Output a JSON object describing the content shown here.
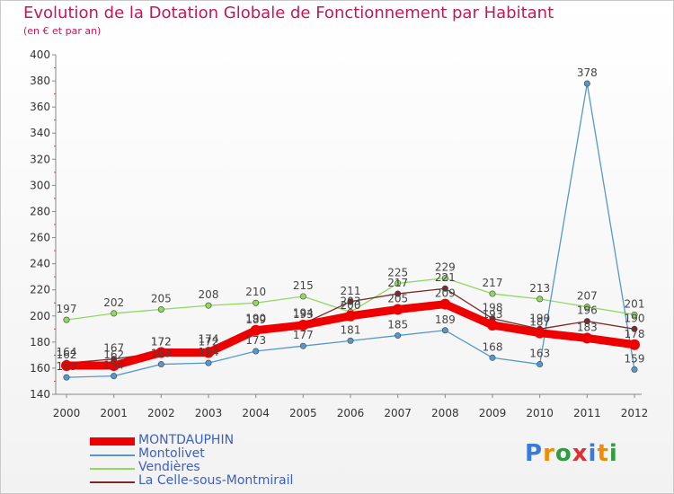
{
  "title": "Evolution de la Dotation Globale de Fonctionnement par Habitant",
  "subtitle": "(en € et par an)",
  "logo": "Proxiti",
  "chart_data": {
    "type": "line",
    "title": "Evolution de la Dotation Globale de Fonctionnement par Habitant",
    "subtitle": "(en € et par an)",
    "xlabel": "",
    "ylabel": "",
    "x": [
      "2000",
      "2001",
      "2002",
      "2003",
      "2004",
      "2005",
      "2006",
      "2007",
      "2008",
      "2009",
      "2010",
      "2011",
      "2012"
    ],
    "ylim": [
      140,
      400
    ],
    "yticks": [
      140,
      160,
      180,
      200,
      220,
      240,
      260,
      280,
      300,
      320,
      340,
      360,
      380,
      400
    ],
    "grid": false,
    "legend": "bottom-left",
    "series": [
      {
        "name": "Vendières",
        "color": "#90d860",
        "values": [
          197,
          202,
          205,
          208,
          210,
          215,
          203,
          225,
          229,
          217,
          213,
          207,
          201
        ],
        "labels": [
          "197",
          "202",
          "205",
          "208",
          "210",
          "215",
          "203",
          "225",
          "229",
          "217",
          "213",
          "207",
          "201"
        ]
      },
      {
        "name": "Montolivet",
        "color": "#5599cc",
        "values": [
          153,
          154,
          163,
          164,
          173,
          177,
          181,
          185,
          189,
          168,
          163,
          378,
          159
        ],
        "labels": [
          "153",
          "154",
          "163",
          "164",
          "173",
          "177",
          "181",
          "185",
          "189",
          "168",
          "163",
          "378",
          "159"
        ]
      },
      {
        "name": "La Celle-sous-Montmirail",
        "color": "#7a2a2a",
        "values": [
          164,
          167,
          172,
          174,
          190,
          194,
          211,
          217,
          221,
          198,
          190,
          196,
          190
        ],
        "labels": [
          "164",
          "167",
          "172",
          "174",
          "190",
          "194",
          "211",
          "217",
          "221",
          "198",
          "190",
          "196",
          "190"
        ]
      },
      {
        "name": "MONTDAUPHIN",
        "color": "#ee0000",
        "values": [
          162,
          162,
          172,
          172,
          189,
          193,
          200,
          205,
          209,
          193,
          187,
          183,
          178
        ],
        "labels": [
          "162",
          "162",
          "172",
          "172",
          "189",
          "193",
          "200",
          "205",
          "209",
          "193",
          "187",
          "183",
          "178"
        ]
      }
    ],
    "legend_order": [
      "MONTDAUPHIN",
      "Montolivet",
      "Vendières",
      "La Celle-sous-Montmirail"
    ]
  }
}
